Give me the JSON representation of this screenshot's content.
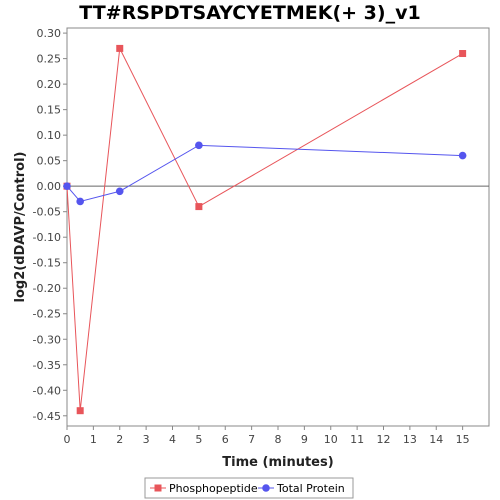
{
  "chart_data": {
    "type": "line",
    "title": "TT#RSPDTSAYCYETMEK(+ 3)_v1",
    "xlabel": "Time (minutes)",
    "ylabel": "log2(dDAVP/Control)",
    "xlim": [
      0,
      16
    ],
    "ylim": [
      -0.47,
      0.31
    ],
    "x_ticks": [
      0,
      1,
      2,
      3,
      4,
      5,
      6,
      7,
      8,
      9,
      10,
      11,
      12,
      13,
      14,
      15
    ],
    "y_ticks": [
      0.3,
      0.25,
      0.2,
      0.15,
      0.1,
      0.05,
      0.0,
      -0.05,
      -0.1,
      -0.15,
      -0.2,
      -0.25,
      -0.3,
      -0.35,
      -0.4,
      -0.45
    ],
    "grid": false,
    "legend_position": "bottom",
    "series": [
      {
        "name": "Phosphopeptide",
        "color": "#e8555a",
        "marker": "square",
        "x": [
          0,
          0.5,
          2,
          5,
          15
        ],
        "y": [
          0.0,
          -0.44,
          0.27,
          -0.04,
          0.26
        ]
      },
      {
        "name": "Total Protein",
        "color": "#5555ee",
        "marker": "circle",
        "x": [
          0,
          0.5,
          2,
          5,
          15
        ],
        "y": [
          0.0,
          -0.03,
          -0.01,
          0.08,
          0.06
        ]
      }
    ]
  }
}
